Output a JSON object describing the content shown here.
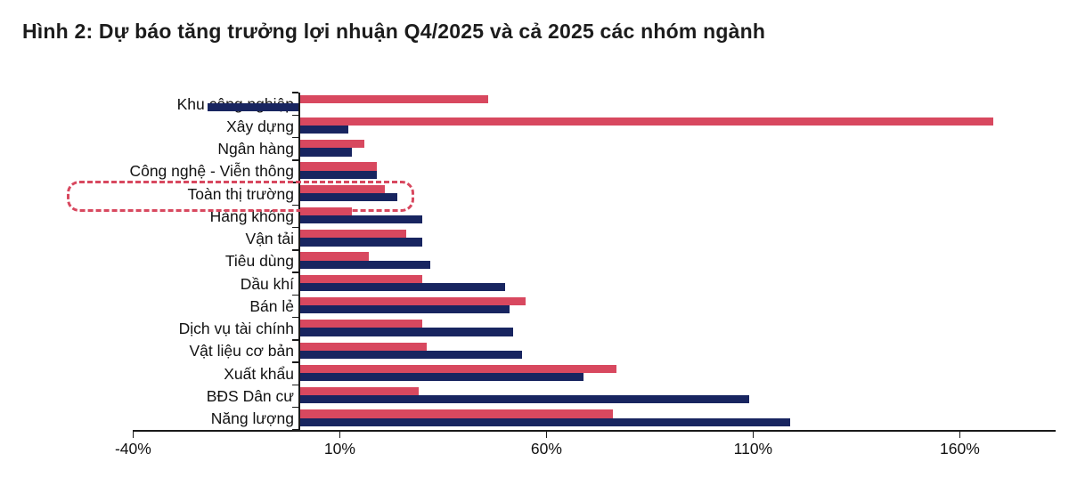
{
  "title": "Hình 2: Dự báo tăng trưởng lợi nhuận Q4/2025 và cả 2025 các nhóm ngành",
  "chart_data": {
    "type": "bar",
    "orientation": "horizontal",
    "title": "Hình 2: Dự báo tăng trưởng lợi nhuận Q4/2025 và cả 2025 các nhóm ngành",
    "unit": "%",
    "categories": [
      "Khu công nghiệp",
      "Xây dựng",
      "Ngân hàng",
      "Công nghệ - Viễn thông",
      "Toàn thị trường",
      "Hàng không",
      "Vận tải",
      "Tiêu dùng",
      "Dầu khí",
      "Bán lẻ",
      "Dịch vụ tài chính",
      "Vật liệu cơ bản",
      "Xuất khẩu",
      "BĐS Dân cư",
      "Năng lượng"
    ],
    "series": [
      {
        "name": "Q4/2025",
        "color_key": "red",
        "values": [
          46,
          168,
          16,
          19,
          21,
          13,
          26,
          17,
          30,
          55,
          30,
          31,
          77,
          29,
          76
        ]
      },
      {
        "name": "Cả 2025",
        "color_key": "navy",
        "values": [
          -22,
          12,
          13,
          19,
          24,
          30,
          30,
          32,
          50,
          51,
          52,
          54,
          69,
          109,
          119
        ]
      }
    ],
    "x_ticks": [
      "-40%",
      "10%",
      "60%",
      "110%",
      "160%"
    ],
    "x_tick_values": [
      -40,
      10,
      60,
      110,
      160
    ],
    "xlim": [
      -40,
      183
    ],
    "highlighted_category": "Toàn thị trường",
    "colors": {
      "red": "#d8485f",
      "navy": "#182560"
    },
    "legend": "none",
    "grid": false
  }
}
